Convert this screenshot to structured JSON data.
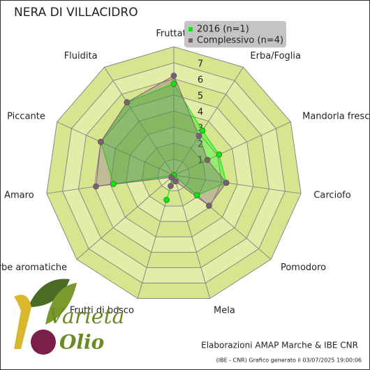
{
  "chart_data": {
    "type": "radar",
    "title": "NERA DI VILLACIDRO",
    "categories": [
      "Fruttato",
      "Erba/Foglia",
      "Mandorla fresca",
      "Carciofo",
      "Pomodoro",
      "Mela",
      "Frutti di bosco",
      "Erbe aromatiche",
      "Amaro",
      "Piccante",
      "Fluidita"
    ],
    "series": [
      {
        "name": "2016 (n=1)",
        "color": "#00ee00",
        "values": [
          5.7,
          3.3,
          3.1,
          3.3,
          1.9,
          0,
          1.6,
          0,
          3.8,
          5.0,
          5.4
        ]
      },
      {
        "name": "Complessivo (n=4)",
        "color": "#7d5f73",
        "values": [
          6.2,
          2.9,
          2.3,
          3.3,
          2.9,
          0.4,
          0.7,
          0.2,
          4.9,
          5.0,
          5.4
        ]
      }
    ],
    "ylim": [
      0,
      8
    ],
    "yticks": [
      1,
      2,
      3,
      4,
      5,
      6,
      7
    ],
    "legend": "top-right",
    "credit": "Elaborazioni AMAP Marche & IBE CNR",
    "footnote": "(IBE - CNR) Grafico generato il 03/07/2025 19:00:06",
    "logo": {
      "line1": "Varietà",
      "line2": "Olio"
    }
  }
}
